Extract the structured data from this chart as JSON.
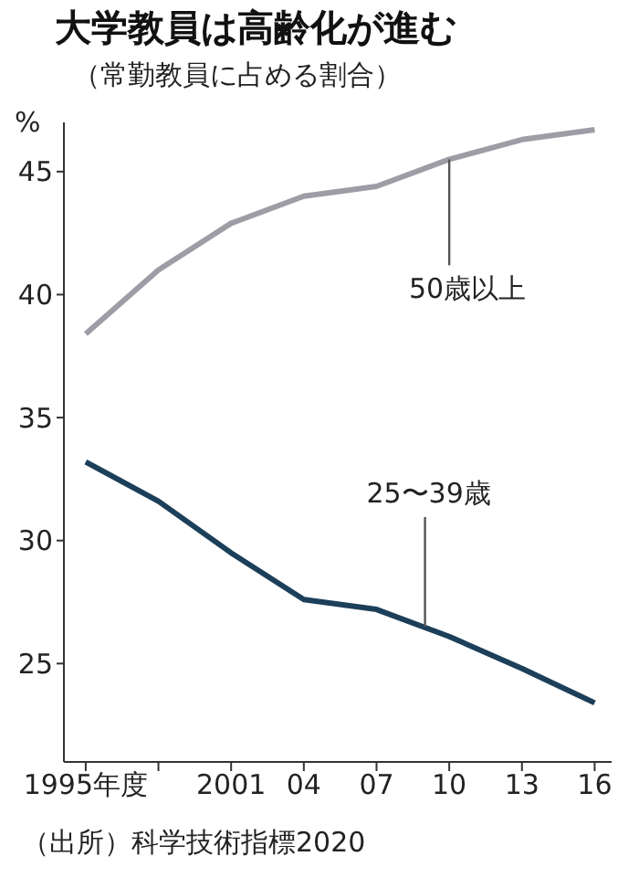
{
  "chart_data": {
    "type": "line",
    "title": "大学教員は高齢化が進む",
    "subtitle": "（常勤教員に占める割合）",
    "ylabel": "%",
    "x": [
      1995,
      1998,
      2001,
      2004,
      2007,
      2010,
      2013,
      2016
    ],
    "series": [
      {
        "color": "#9d9da6",
        "values": [
          38.4,
          41.0,
          42.9,
          44.0,
          44.4,
          45.5,
          46.3,
          46.7
        ]
      },
      {
        "color": "#1c3f5a",
        "values": [
          33.2,
          31.6,
          29.5,
          27.6,
          27.2,
          26.1,
          24.8,
          23.4
        ]
      }
    ],
    "xlim": [
      1994.1,
      2016.7
    ],
    "xticks": [
      {
        "value": 1995,
        "label": "1995年度"
      },
      {
        "value": 1998,
        "label": null
      },
      2001,
      {
        "value": 2004,
        "label": "04"
      },
      {
        "value": 2007,
        "label": "07"
      },
      {
        "value": 2010,
        "label": "10"
      },
      {
        "value": 2013,
        "label": "13"
      },
      {
        "value": 2016,
        "label": "16"
      }
    ],
    "ylim": [
      21,
      47
    ],
    "yticks": [
      25,
      30,
      35,
      40,
      45
    ],
    "grid": false,
    "legend": false,
    "marker": "none",
    "line_style": "solid",
    "annotations": [
      {
        "text": "50歳以上",
        "x": 2010,
        "y": 45.5
      },
      {
        "text": "25〜39歳",
        "x": 2009,
        "y": 26.5
      },
      "（出所）科学技術指標2020"
    ]
  }
}
